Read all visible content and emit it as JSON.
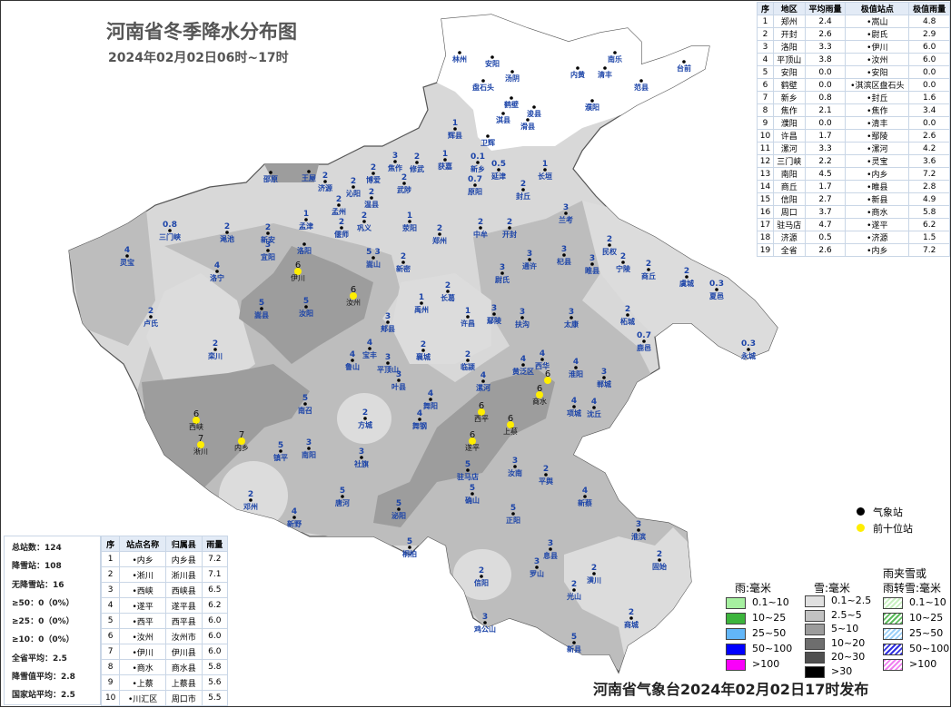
{
  "title": "河南省冬季降水分布图",
  "subtitle": "2024年02月02日06时~17时",
  "footer": "河南省气象台2024年02月02日17时发布",
  "region_table": {
    "headers": [
      "序",
      "地区",
      "平均雨量",
      "极值站点",
      "极值雨量"
    ],
    "rows": [
      [
        "1",
        "郑州",
        "2.4",
        "•嵩山",
        "4.8"
      ],
      [
        "2",
        "开封",
        "2.6",
        "•尉氏",
        "2.9"
      ],
      [
        "3",
        "洛阳",
        "3.3",
        "•伊川",
        "6.0"
      ],
      [
        "4",
        "平顶山",
        "3.8",
        "•汝州",
        "6.0"
      ],
      [
        "5",
        "安阳",
        "0.0",
        "•安阳",
        "0.0"
      ],
      [
        "6",
        "鹤壁",
        "0.0",
        "•淇滨区盘石头",
        "0.0"
      ],
      [
        "7",
        "新乡",
        "0.8",
        "•封丘",
        "1.6"
      ],
      [
        "8",
        "焦作",
        "2.1",
        "•焦作",
        "3.4"
      ],
      [
        "9",
        "濮阳",
        "0.0",
        "•清丰",
        "0.0"
      ],
      [
        "10",
        "许昌",
        "1.7",
        "•鄢陵",
        "2.6"
      ],
      [
        "11",
        "漯河",
        "3.3",
        "•漯河",
        "4.2"
      ],
      [
        "12",
        "三门峡",
        "2.2",
        "•灵宝",
        "3.6"
      ],
      [
        "13",
        "南阳",
        "4.5",
        "•内乡",
        "7.2"
      ],
      [
        "14",
        "商丘",
        "1.7",
        "•睢县",
        "2.8"
      ],
      [
        "15",
        "信阳",
        "2.7",
        "•新县",
        "4.9"
      ],
      [
        "16",
        "周口",
        "3.7",
        "•商水",
        "5.8"
      ],
      [
        "17",
        "驻马店",
        "4.7",
        "•遂平",
        "6.2"
      ],
      [
        "18",
        "济源",
        "0.5",
        "•济源",
        "1.5"
      ],
      [
        "19",
        "全省",
        "2.6",
        "•内乡",
        "7.2"
      ]
    ]
  },
  "stats": [
    "总站数：124",
    "降雪站：108",
    "无降雪站：16",
    "≥50：0（0%）",
    "≥25：0（0%）",
    "≥10：0（0%）",
    "全省平均：2.5",
    "降雪值平均：2.8",
    "国家站平均：2.5"
  ],
  "top10_table": {
    "headers": [
      "序",
      "站点名称",
      "归属县",
      "雨量"
    ],
    "rows": [
      [
        "1",
        "•内乡",
        "内乡县",
        "7.2"
      ],
      [
        "2",
        "•淅川",
        "淅川县",
        "7.1"
      ],
      [
        "3",
        "•西峡",
        "西峡县",
        "6.5"
      ],
      [
        "4",
        "•遂平",
        "遂平县",
        "6.2"
      ],
      [
        "5",
        "•西平",
        "西平县",
        "6.0"
      ],
      [
        "6",
        "•汝州",
        "汝州市",
        "6.0"
      ],
      [
        "7",
        "•伊川",
        "伊川县",
        "6.0"
      ],
      [
        "8",
        "•商水",
        "商水县",
        "5.8"
      ],
      [
        "9",
        "•上蔡",
        "上蔡县",
        "5.6"
      ],
      [
        "10",
        "•川汇区",
        "周口市",
        "5.5"
      ]
    ]
  },
  "legend": {
    "station": "气象站",
    "top10": "前十位站",
    "rain": {
      "title": "雨:毫米",
      "items": [
        {
          "label": "0.1~10",
          "color": "#a6f0a0"
        },
        {
          "label": "10~25",
          "color": "#3cb43c"
        },
        {
          "label": "25~50",
          "color": "#62b6f8"
        },
        {
          "label": "50~100",
          "color": "#0000ff"
        },
        {
          "label": ">100",
          "color": "#fa00fa"
        }
      ]
    },
    "snow": {
      "title": "雪:毫米",
      "items": [
        {
          "label": "0.1~2.5",
          "color": "#e0e0e0"
        },
        {
          "label": "2.5~5",
          "color": "#c2c2c2"
        },
        {
          "label": "5~10",
          "color": "#9c9c9c"
        },
        {
          "label": "10~20",
          "color": "#6e6e6e"
        },
        {
          "label": "20~30",
          "color": "#505050"
        },
        {
          "label": ">30",
          "color": "#000000"
        }
      ]
    },
    "mixed": {
      "title1": "雨夹雪或",
      "title2": "雨转雪:毫米",
      "items": [
        {
          "label": "0.1~10",
          "color": "#c8f0c0"
        },
        {
          "label": "10~25",
          "color": "#5cbc5c"
        },
        {
          "label": "25~50",
          "color": "#9cd0f8"
        },
        {
          "label": "50~100",
          "color": "#3030e0"
        },
        {
          "label": ">100",
          "color": "#f080f0"
        }
      ]
    }
  },
  "stations": [
    {
      "n": "林州",
      "v": ""
    },
    {
      "n": "安阳",
      "v": ""
    },
    {
      "n": "汤阴",
      "v": ""
    },
    {
      "n": "盘石头",
      "v": ""
    },
    {
      "n": "鹤壁",
      "v": ""
    },
    {
      "n": "浚县",
      "v": ""
    },
    {
      "n": "淇县",
      "v": ""
    },
    {
      "n": "滑县",
      "v": ""
    },
    {
      "n": "内黄",
      "v": ""
    },
    {
      "n": "清丰",
      "v": ""
    },
    {
      "n": "南乐",
      "v": ""
    },
    {
      "n": "台前",
      "v": ""
    },
    {
      "n": "范县",
      "v": ""
    },
    {
      "n": "濮阳",
      "v": ""
    },
    {
      "n": "辉县",
      "v": "1"
    },
    {
      "n": "卫辉",
      "v": ""
    },
    {
      "n": "获嘉",
      "v": "1"
    },
    {
      "n": "新乡",
      "v": "0.1"
    },
    {
      "n": "原阳",
      "v": "0.7"
    },
    {
      "n": "延津",
      "v": "0.5"
    },
    {
      "n": "长垣",
      "v": "1"
    },
    {
      "n": "封丘",
      "v": "2"
    },
    {
      "n": "焦作",
      "v": "3"
    },
    {
      "n": "修武",
      "v": "2"
    },
    {
      "n": "博爱",
      "v": "2"
    },
    {
      "n": "武陟",
      "v": "2"
    },
    {
      "n": "沁阳",
      "v": "2"
    },
    {
      "n": "济源",
      "v": "2"
    },
    {
      "n": "邵原",
      "v": ""
    },
    {
      "n": "王屋",
      "v": ""
    },
    {
      "n": "温县",
      "v": "2"
    },
    {
      "n": "孟州",
      "v": "2"
    },
    {
      "n": "孟津",
      "v": "1"
    },
    {
      "n": "偃师",
      "v": "2"
    },
    {
      "n": "巩义",
      "v": "2"
    },
    {
      "n": "荥阳",
      "v": "1"
    },
    {
      "n": "郑州",
      "v": "2"
    },
    {
      "n": "中牟",
      "v": "2"
    },
    {
      "n": "开封",
      "v": "2"
    },
    {
      "n": "兰考",
      "v": "3"
    },
    {
      "n": "三门峡",
      "v": "0.8"
    },
    {
      "n": "渑池",
      "v": "2"
    },
    {
      "n": "新安",
      "v": "2"
    },
    {
      "n": "灵宝",
      "v": "4"
    },
    {
      "n": "宜阳",
      "v": "3"
    },
    {
      "n": "洛阳",
      "v": ""
    },
    {
      "n": "伊川",
      "v": "6",
      "top": true
    },
    {
      "n": "嵩山",
      "v": "5 3"
    },
    {
      "n": "新密",
      "v": "2"
    },
    {
      "n": "洛宁",
      "v": "4"
    },
    {
      "n": "卢氏",
      "v": "2"
    },
    {
      "n": "嵩县",
      "v": "5"
    },
    {
      "n": "汝阳",
      "v": "5"
    },
    {
      "n": "汝州",
      "v": "6",
      "top": true
    },
    {
      "n": "禹州",
      "v": "1"
    },
    {
      "n": "长葛",
      "v": "2"
    },
    {
      "n": "许昌",
      "v": "1"
    },
    {
      "n": "鄢陵",
      "v": "3"
    },
    {
      "n": "扶沟",
      "v": "3"
    },
    {
      "n": "太康",
      "v": "3"
    },
    {
      "n": "尉氏",
      "v": "3"
    },
    {
      "n": "通许",
      "v": "3"
    },
    {
      "n": "杞县",
      "v": "3"
    },
    {
      "n": "睢县",
      "v": "3"
    },
    {
      "n": "民权",
      "v": "2"
    },
    {
      "n": "宁陵",
      "v": "2"
    },
    {
      "n": "商丘",
      "v": "2"
    },
    {
      "n": "虞城",
      "v": "2"
    },
    {
      "n": "夏邑",
      "v": "0.3"
    },
    {
      "n": "柘城",
      "v": "2"
    },
    {
      "n": "鹿邑",
      "v": "0.7"
    },
    {
      "n": "永城",
      "v": "0.3"
    },
    {
      "n": "郏县",
      "v": "3"
    },
    {
      "n": "宝丰",
      "v": "4"
    },
    {
      "n": "鲁山",
      "v": "4"
    },
    {
      "n": "平顶山",
      "v": "3"
    },
    {
      "n": "襄城",
      "v": "2"
    },
    {
      "n": "临颍",
      "v": "2"
    },
    {
      "n": "栾川",
      "v": "2"
    },
    {
      "n": "叶县",
      "v": "3"
    },
    {
      "n": "舞阳",
      "v": "4"
    },
    {
      "n": "舞钢",
      "v": "4"
    },
    {
      "n": "漯河",
      "v": "4"
    },
    {
      "n": "黄泛区",
      "v": "4"
    },
    {
      "n": "西华",
      "v": "4"
    },
    {
      "n": "",
      "v": "6",
      "top": true
    },
    {
      "n": "商水",
      "v": "6",
      "top": true
    },
    {
      "n": "淮阳",
      "v": "4"
    },
    {
      "n": "郸城",
      "v": "3"
    },
    {
      "n": "项城",
      "v": "4"
    },
    {
      "n": "沈丘",
      "v": "4"
    },
    {
      "n": "西平",
      "v": "6",
      "top": true
    },
    {
      "n": "上蔡",
      "v": "6",
      "top": true
    },
    {
      "n": "遂平",
      "v": "6",
      "top": true
    },
    {
      "n": "驻马店",
      "v": "5"
    },
    {
      "n": "确山",
      "v": "5"
    },
    {
      "n": "汝南",
      "v": "3"
    },
    {
      "n": "平舆",
      "v": "2"
    },
    {
      "n": "新蔡",
      "v": "4"
    },
    {
      "n": "正阳",
      "v": "5"
    },
    {
      "n": "南召",
      "v": "5"
    },
    {
      "n": "方城",
      "v": "2"
    },
    {
      "n": "西峡",
      "v": "6",
      "top": true
    },
    {
      "n": "淅川",
      "v": "7",
      "top": true
    },
    {
      "n": "内乡",
      "v": "7",
      "top": true
    },
    {
      "n": "镇平",
      "v": "5"
    },
    {
      "n": "南阳",
      "v": "3"
    },
    {
      "n": "社旗",
      "v": "3"
    },
    {
      "n": "唐河",
      "v": "5"
    },
    {
      "n": "邓州",
      "v": "2"
    },
    {
      "n": "新野",
      "v": "4"
    },
    {
      "n": "泌阳",
      "v": "5"
    },
    {
      "n": "桐柏",
      "v": "5"
    },
    {
      "n": "淮滨",
      "v": "3"
    },
    {
      "n": "息县",
      "v": "3"
    },
    {
      "n": "罗山",
      "v": "3"
    },
    {
      "n": "信阳",
      "v": "2"
    },
    {
      "n": "潢川",
      "v": "2"
    },
    {
      "n": "光山",
      "v": "2"
    },
    {
      "n": "固始",
      "v": "2"
    },
    {
      "n": "商城",
      "v": "2"
    },
    {
      "n": "鸡公山",
      "v": "3"
    },
    {
      "n": "新县",
      "v": "5"
    }
  ]
}
